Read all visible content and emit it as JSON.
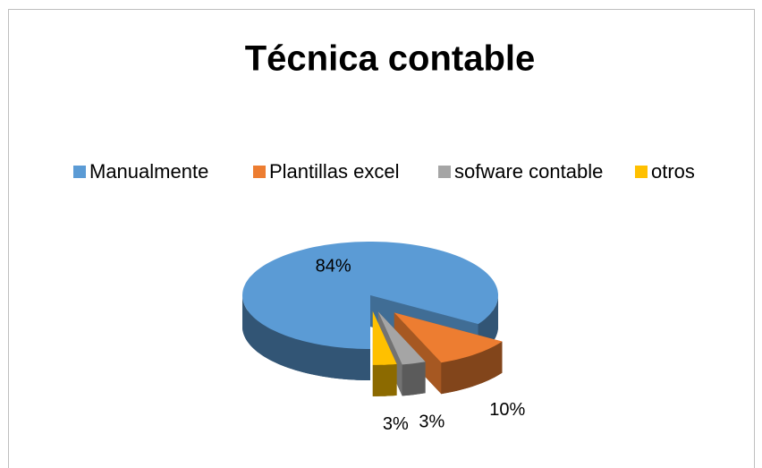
{
  "chart_data": {
    "type": "pie3d",
    "title": "Técnica contable",
    "categories": [
      "Manualmente",
      "Plantillas excel",
      "sofware contable",
      "otros"
    ],
    "values": [
      84,
      10,
      3,
      3
    ],
    "value_labels": [
      "84%",
      "10%",
      "3%",
      "3%"
    ],
    "colors": [
      "#5b9bd5",
      "#ed7d31",
      "#a5a5a5",
      "#ffc000"
    ],
    "legend": "top"
  }
}
